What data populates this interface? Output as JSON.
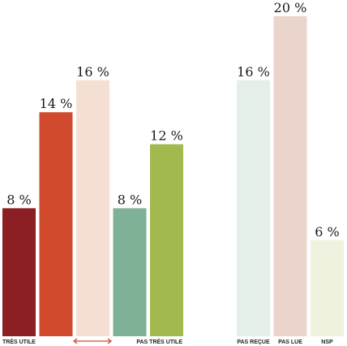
{
  "chart_data": {
    "type": "bar",
    "title": "",
    "xlabel": "",
    "ylabel": "",
    "ylim": [
      0,
      20
    ],
    "grid": false,
    "value_suffix": " %",
    "groups": [
      {
        "bars": [
          {
            "value": 8,
            "label": "8 %",
            "color": "#8b1f24"
          },
          {
            "value": 14,
            "label": "14 %",
            "color": "#d14a2d"
          },
          {
            "value": 16,
            "label": "16 %",
            "color": "#f5dfd2"
          },
          {
            "value": 8,
            "label": "8 %",
            "color": "#7eb196"
          },
          {
            "value": 12,
            "label": "12 %",
            "color": "#a1b94d"
          }
        ],
        "scale_labels": {
          "left": "TRÈS UTILE",
          "right": "PAS TRÈS UTILE"
        }
      },
      {
        "bars": [
          {
            "value": 16,
            "label": "16 %",
            "category": "PAS REÇUE",
            "color": "#e5efe9"
          },
          {
            "value": 20,
            "label": "20 %",
            "category": "PAS LUE",
            "color": "#ebd4cb"
          },
          {
            "value": 6,
            "label": "6 %",
            "category": "NSP",
            "color": "#eef2de"
          }
        ]
      }
    ],
    "arrow_color": "#d14a2d"
  }
}
